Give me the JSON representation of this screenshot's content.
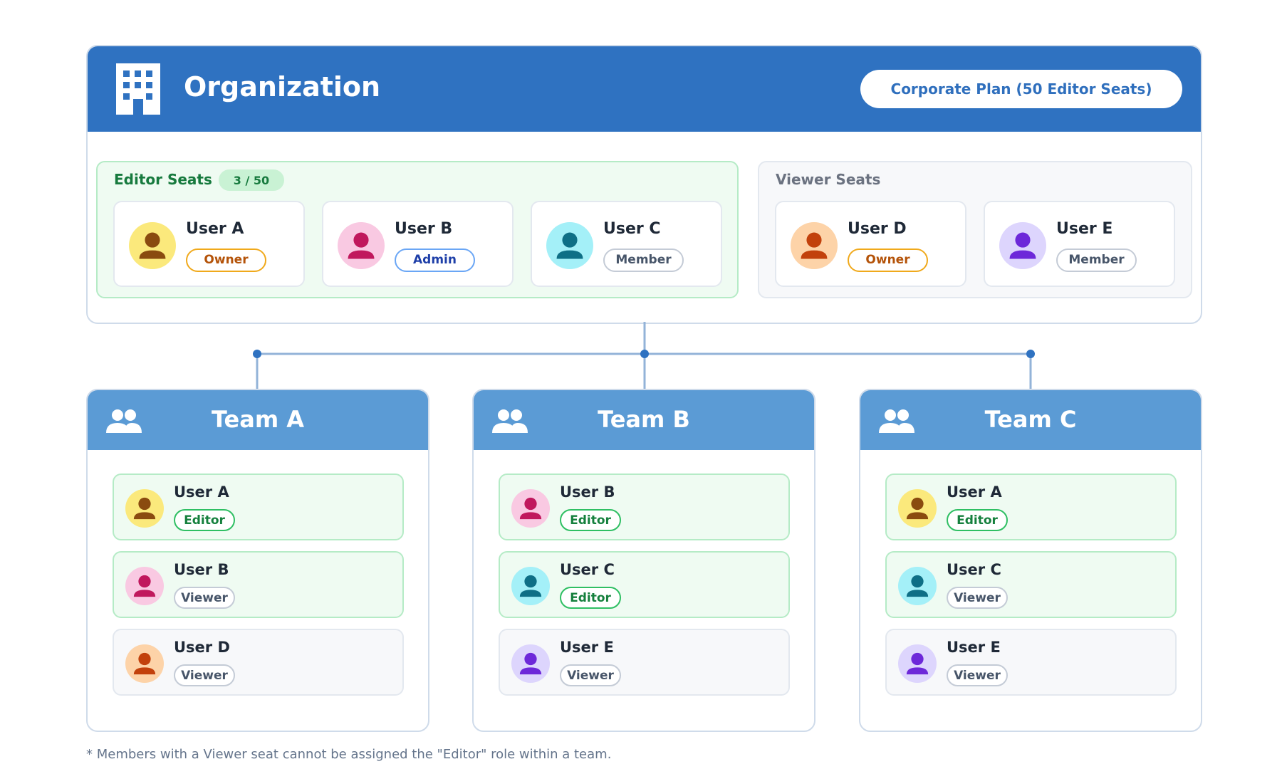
{
  "header": {
    "title": "Organization",
    "plan": "Corporate Plan (50 Editor Seats)"
  },
  "editor_seats": {
    "label": "Editor Seats",
    "count": "3 / 50",
    "users": [
      {
        "name": "User A",
        "role": "Owner",
        "color": "#fbe97c",
        "figure": "#8a4b0f",
        "role_color": "#f0a91b",
        "role_text": "#b45309"
      },
      {
        "name": "User B",
        "role": "Admin",
        "color": "#f9c9e2",
        "figure": "#c0185d",
        "role_color": "#6aa6f5",
        "role_text": "#1e3fa8"
      },
      {
        "name": "User C",
        "role": "Member",
        "color": "#a4f0f8",
        "figure": "#0e6f86",
        "role_color": "#c4cbd6",
        "role_text": "#475569"
      }
    ]
  },
  "viewer_seats": {
    "label": "Viewer Seats",
    "users": [
      {
        "name": "User D",
        "role": "Owner",
        "color": "#fdd3a8",
        "figure": "#c2410c",
        "role_color": "#f0a91b",
        "role_text": "#b45309"
      },
      {
        "name": "User E",
        "role": "Member",
        "color": "#ddd5fd",
        "figure": "#6d28d9",
        "role_color": "#c4cbd6",
        "role_text": "#475569"
      }
    ]
  },
  "teams": [
    {
      "name": "Team A",
      "members": [
        {
          "name": "User A",
          "role": "Editor",
          "color": "#fbe97c",
          "figure": "#8a4b0f",
          "role_color": "#2fbf63",
          "role_text": "#15803d",
          "card_color": "#effbf2"
        },
        {
          "name": "User B",
          "role": "Viewer",
          "color": "#f9c9e2",
          "figure": "#c0185d",
          "role_color": "#c4cbd6",
          "role_text": "#475569",
          "card_color": "#effbf2"
        },
        {
          "name": "User D",
          "role": "Viewer",
          "color": "#fdd3a8",
          "figure": "#c2410c",
          "role_color": "#c4cbd6",
          "role_text": "#475569",
          "card_color": "#f7f8fa"
        }
      ]
    },
    {
      "name": "Team B",
      "members": [
        {
          "name": "User B",
          "role": "Editor",
          "color": "#f9c9e2",
          "figure": "#c0185d",
          "role_color": "#2fbf63",
          "role_text": "#15803d",
          "card_color": "#effbf2"
        },
        {
          "name": "User C",
          "role": "Editor",
          "color": "#a4f0f8",
          "figure": "#0e6f86",
          "role_color": "#2fbf63",
          "role_text": "#15803d",
          "card_color": "#effbf2"
        },
        {
          "name": "User E",
          "role": "Viewer",
          "color": "#ddd5fd",
          "figure": "#6d28d9",
          "role_color": "#c4cbd6",
          "role_text": "#475569",
          "card_color": "#f7f8fa"
        }
      ]
    },
    {
      "name": "Team C",
      "members": [
        {
          "name": "User A",
          "role": "Editor",
          "color": "#fbe97c",
          "figure": "#8a4b0f",
          "role_color": "#2fbf63",
          "role_text": "#15803d",
          "card_color": "#effbf2"
        },
        {
          "name": "User C",
          "role": "Viewer",
          "color": "#a4f0f8",
          "figure": "#0e6f86",
          "role_color": "#c4cbd6",
          "role_text": "#475569",
          "card_color": "#effbf2"
        },
        {
          "name": "User E",
          "role": "Viewer",
          "color": "#ddd5fd",
          "figure": "#6d28d9",
          "role_color": "#c4cbd6",
          "role_text": "#475569",
          "card_color": "#f7f8fa"
        }
      ]
    }
  ],
  "footnote": "* Members with a Viewer seat cannot be assigned the \"Editor\" role within a team."
}
